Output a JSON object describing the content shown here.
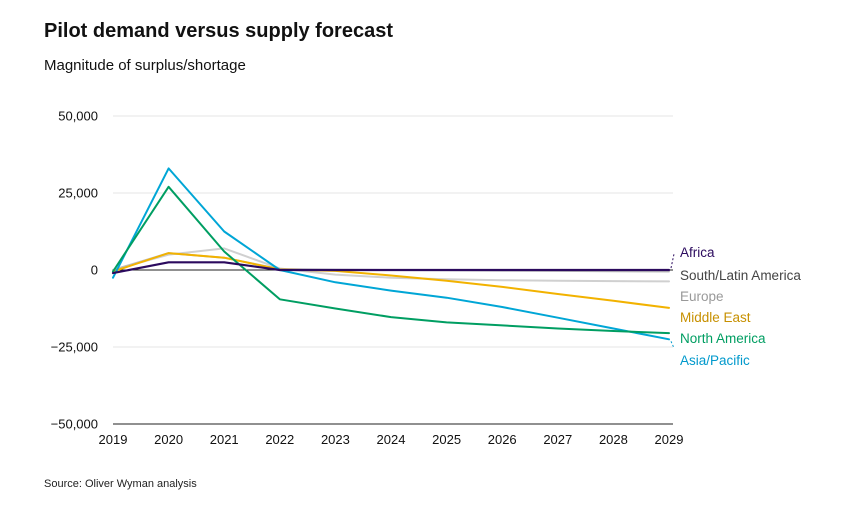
{
  "header": {
    "title": "Pilot demand versus supply forecast",
    "subtitle": "Magnitude of surplus/shortage"
  },
  "footer": {
    "source": "Source: Oliver Wyman analysis"
  },
  "chart_data": {
    "type": "line",
    "title": "Pilot demand versus supply forecast",
    "subtitle": "Magnitude of surplus/shortage",
    "xlabel": "",
    "ylabel": "",
    "x": [
      2019,
      2020,
      2021,
      2022,
      2023,
      2024,
      2025,
      2026,
      2027,
      2028,
      2029
    ],
    "x_tick_labels": [
      "2019",
      "2020",
      "2021",
      "2022",
      "2023",
      "2024",
      "2025",
      "2026",
      "2027",
      "2028",
      "2029"
    ],
    "ylim": [
      -50000,
      50000
    ],
    "y_ticks": [
      50000,
      25000,
      0,
      -25000,
      -50000
    ],
    "y_tick_labels": [
      "50,000",
      "25,000",
      "0",
      "−25,000",
      "−50,000"
    ],
    "grid": true,
    "legend": "direct labels at right end of lines",
    "series": [
      {
        "name": "Europe",
        "color": "#d0d0d0",
        "label_color": "#999999",
        "values": [
          0,
          5000,
          7000,
          500,
          -1500,
          -2500,
          -3000,
          -3300,
          -3500,
          -3600,
          -3700
        ]
      },
      {
        "name": "South/Latin America",
        "color": "#bdbdbd",
        "label_color": "#444444",
        "values": [
          0,
          5500,
          4000,
          300,
          100,
          0,
          -100,
          -200,
          -300,
          -400,
          -500
        ]
      },
      {
        "name": "Middle East",
        "color": "#f2b200",
        "label_color": "#c79000",
        "values": [
          -500,
          5500,
          4000,
          200,
          -300,
          -1800,
          -3500,
          -5500,
          -7800,
          -10000,
          -12300
        ]
      },
      {
        "name": "Asia/Pacific",
        "color": "#00a6d6",
        "label_color": "#0099cc",
        "values": [
          -2500,
          33000,
          12500,
          0,
          -4000,
          -6700,
          -9000,
          -12000,
          -15500,
          -19000,
          -22500
        ]
      },
      {
        "name": "North America",
        "color": "#009e62",
        "label_color": "#009e62",
        "values": [
          -500,
          27000,
          6000,
          -9500,
          -12500,
          -15300,
          -17000,
          -18000,
          -19000,
          -19800,
          -20500
        ]
      },
      {
        "name": "Africa",
        "color": "#2b0a5e",
        "label_color": "#2b0a5e",
        "values": [
          -1000,
          2500,
          2500,
          0,
          0,
          0,
          0,
          0,
          0,
          0,
          0
        ]
      }
    ],
    "end_labels": [
      {
        "name": "Africa",
        "color": "#2b0a5e",
        "connector": true
      },
      {
        "name": "South/Latin America",
        "color": "#444444",
        "connector": false
      },
      {
        "name": "Europe",
        "color": "#999999",
        "connector": false
      },
      {
        "name": "Middle East",
        "color": "#c79000",
        "connector": false
      },
      {
        "name": "North America",
        "color": "#009e62",
        "connector": false
      },
      {
        "name": "Asia/Pacific",
        "color": "#0099cc",
        "connector": true
      }
    ]
  }
}
